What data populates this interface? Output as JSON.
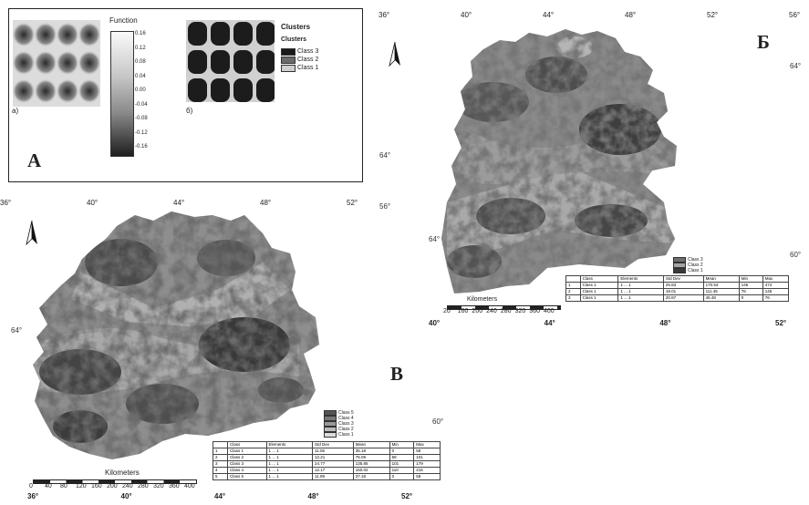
{
  "panel_a": {
    "letter": "А",
    "sub_a": "а)",
    "sub_b": "б)",
    "colorbar_title": "Function",
    "colorbar_ticks": [
      "0.16",
      "0.12",
      "0.08",
      "0.04",
      "0.00",
      "-0.04",
      "-0.08",
      "-0.12",
      "-0.16"
    ],
    "clusters_title": "Clusters",
    "clusters_subtitle": "Clusters",
    "classes": [
      {
        "label": "Class 3",
        "color": "#1a1a1a"
      },
      {
        "label": "Class 2",
        "color": "#6a6a6a"
      },
      {
        "label": "Class 1",
        "color": "#cfcfcf"
      }
    ]
  },
  "map_b": {
    "letter": "Б",
    "top_ticks": [
      "36°",
      "40°",
      "44°",
      "48°",
      "52°",
      "56°"
    ],
    "left_ticks": [
      "64°",
      "56°",
      "64°"
    ],
    "right_ticks": [
      "64°",
      "60°"
    ],
    "bottom_ticks": [
      "40°",
      "44°",
      "48°",
      "52°"
    ],
    "scale_title": "Kilometers",
    "scale_ticks": [
      "20",
      "160",
      "200",
      "240",
      "280",
      "320",
      "360",
      "400"
    ],
    "legend": [
      {
        "label": "Class 3",
        "color": "#6e6e6e"
      },
      {
        "label": "Class 2",
        "color": "#a5a5a5"
      },
      {
        "label": "Class 1",
        "color": "#3a3a3a"
      }
    ],
    "table": {
      "headers": [
        "",
        "Class",
        "Elements",
        "Std Dev",
        "Mean",
        "Min",
        "Max"
      ],
      "rows": [
        [
          "1",
          "Class 1",
          "1 ... 1",
          "25.83",
          "170.53",
          "146",
          "474"
        ],
        [
          "2",
          "Class 1",
          "1 ... 1",
          "19.01",
          "111.45",
          "76",
          "145"
        ],
        [
          "3",
          "Class 1",
          "1 ... 1",
          "20.87",
          "45.48",
          "0",
          "76"
        ]
      ]
    }
  },
  "map_c": {
    "letter": "В",
    "top_ticks": [
      "36°",
      "40°",
      "44°",
      "48°",
      "52°"
    ],
    "left_ticks": [
      "64°"
    ],
    "right_ticks": [
      "60°"
    ],
    "bottom_ticks": [
      "36°",
      "40°",
      "44°",
      "48°",
      "52°"
    ],
    "scale_title": "Kilometers",
    "scale_ticks": [
      "0",
      "40",
      "80",
      "120",
      "160",
      "200",
      "240",
      "280",
      "320",
      "360",
      "400"
    ],
    "legend": [
      {
        "label": "Class 5",
        "color": "#555555"
      },
      {
        "label": "Class 4",
        "color": "#777777"
      },
      {
        "label": "Class 3",
        "color": "#999999"
      },
      {
        "label": "Class 2",
        "color": "#bbbbbb"
      },
      {
        "label": "Class 1",
        "color": "#dddddd"
      }
    ],
    "table": {
      "headers": [
        "",
        "Class",
        "Elements",
        "Std Dev",
        "Mean",
        "Min",
        "Max"
      ],
      "rows": [
        [
          "1",
          "Class 1",
          "1 ... 1",
          "11.05",
          "35.18",
          "0",
          "58"
        ],
        [
          "2",
          "Class 2",
          "1 ... 1",
          "12.21",
          "75.09",
          "58",
          "101"
        ],
        [
          "3",
          "Class 3",
          "1 ... 1",
          "24.77",
          "135.85",
          "101",
          "179"
        ],
        [
          "4",
          "Class 4",
          "1 ... 1",
          "12.17",
          "150.02",
          "110",
          "216"
        ],
        [
          "5",
          "Class 5",
          "1 ... 1",
          "11.99",
          "37.18",
          "0",
          "58"
        ]
      ]
    }
  }
}
